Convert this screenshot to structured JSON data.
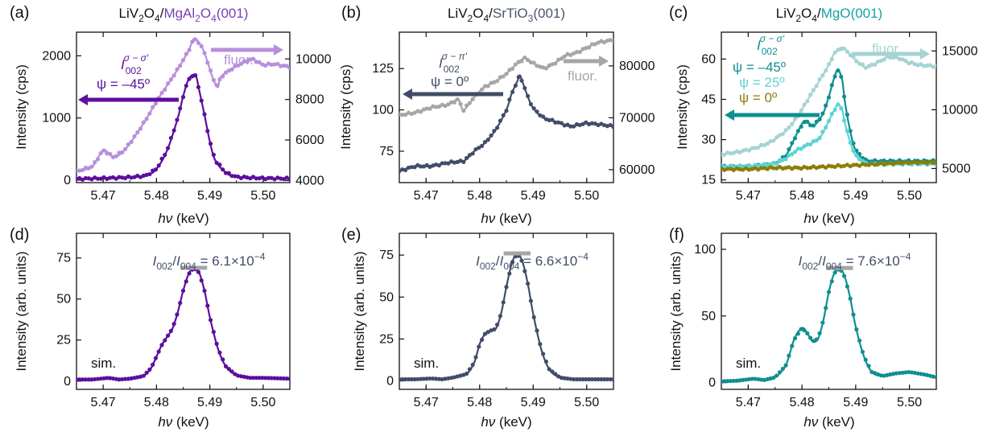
{
  "colors": {
    "purple": "#5c0f9e",
    "purple_light": "#b78fdc",
    "slate": "#414d68",
    "gray": "#a6a6a6",
    "teal_dark": "#0f8f90",
    "teal_light": "#5fd3d5",
    "olive": "#8b7d08",
    "teal_pale": "#a6d3d3",
    "bar": "#a6a6a6"
  },
  "chart_data": [
    {
      "panel": "(a)",
      "type": "line",
      "title_parts": [
        {
          "text": "LiV",
          "color": "#111111"
        },
        {
          "text": "2",
          "sub": true,
          "color": "#111111"
        },
        {
          "text": "O",
          "color": "#111111"
        },
        {
          "text": "4",
          "sub": true,
          "color": "#111111"
        },
        {
          "text": "/",
          "color": "#111111"
        },
        {
          "text": "MgAl",
          "color": "#7a3fb5"
        },
        {
          "text": "2",
          "sub": true,
          "color": "#7a3fb5"
        },
        {
          "text": "O",
          "color": "#7a3fb5"
        },
        {
          "text": "4",
          "sub": true,
          "color": "#7a3fb5"
        },
        {
          "text": "(001)",
          "color": "#7a3fb5"
        }
      ],
      "xlabel": "hν (keV)",
      "ylabel": "Intensity (cps)",
      "xlim": [
        5.465,
        5.505
      ],
      "xticks": [
        "5.47",
        "5.48",
        "5.49",
        "5.50"
      ],
      "ylim": [
        -40,
        2380
      ],
      "yticks": [
        "0",
        "1000",
        "2000"
      ],
      "y2lim": [
        3900,
        11320
      ],
      "y2ticks": [
        "4000",
        "6000",
        "8000",
        "10000"
      ],
      "annotations": [
        "I",
        "002",
        "σ − σ′",
        "ψ = –45º",
        "fluor."
      ],
      "series": [
        {
          "role": "main",
          "color": "#5c0f9e",
          "x": [
            5.465,
            5.47,
            5.475,
            5.478,
            5.48,
            5.482,
            5.484,
            5.485,
            5.486,
            5.487,
            5.4875,
            5.488,
            5.489,
            5.49,
            5.491,
            5.493,
            5.495,
            5.5,
            5.505
          ],
          "y": [
            20,
            30,
            45,
            70,
            180,
            480,
            1000,
            1350,
            1620,
            1700,
            1650,
            1450,
            1050,
            620,
            320,
            120,
            50,
            30,
            25
          ]
        },
        {
          "role": "fluor",
          "axis": "right",
          "color": "#b78fdc",
          "x": [
            5.465,
            5.468,
            5.47,
            5.472,
            5.474,
            5.476,
            5.478,
            5.48,
            5.482,
            5.484,
            5.486,
            5.487,
            5.488,
            5.489,
            5.4905,
            5.4915,
            5.492,
            5.494,
            5.496,
            5.498,
            5.5,
            5.502,
            5.505
          ],
          "y": [
            4450,
            4700,
            5500,
            5150,
            5500,
            6200,
            7000,
            7900,
            8700,
            9500,
            10400,
            11000,
            10800,
            10300,
            9100,
            8600,
            9100,
            9500,
            9800,
            10000,
            9700,
            9750,
            9600
          ]
        }
      ]
    },
    {
      "panel": "(b)",
      "type": "line",
      "title_parts": [
        {
          "text": "LiV",
          "color": "#111111"
        },
        {
          "text": "2",
          "sub": true,
          "color": "#111111"
        },
        {
          "text": "O",
          "color": "#111111"
        },
        {
          "text": "4",
          "sub": true,
          "color": "#111111"
        },
        {
          "text": "/",
          "color": "#111111"
        },
        {
          "text": "SrTiO",
          "color": "#4a5570"
        },
        {
          "text": "3",
          "sub": true,
          "color": "#4a5570"
        },
        {
          "text": "(001)",
          "color": "#4a5570"
        }
      ],
      "xlabel": "hν (keV)",
      "ylabel": "Intensity (cps)",
      "xlim": [
        5.465,
        5.505
      ],
      "xticks": [
        "5.47",
        "5.48",
        "5.49",
        "5.50"
      ],
      "ylim": [
        56,
        147
      ],
      "yticks": [
        "75",
        "100",
        "125"
      ],
      "y2lim": [
        57500,
        86500
      ],
      "y2ticks": [
        "60000",
        "70000",
        "80000"
      ],
      "annotations": [
        "I",
        "002",
        "σ − π′",
        "ψ = 0º",
        "fluor."
      ],
      "series": [
        {
          "role": "main",
          "color": "#414d68",
          "x": [
            5.465,
            5.468,
            5.471,
            5.474,
            5.477,
            5.479,
            5.481,
            5.483,
            5.485,
            5.486,
            5.487,
            5.4875,
            5.488,
            5.489,
            5.49,
            5.492,
            5.494,
            5.497,
            5.5,
            5.503,
            5.505
          ],
          "y": [
            63,
            66,
            66,
            68,
            69,
            75,
            80,
            88,
            100,
            110,
            117,
            121,
            117,
            108,
            101,
            95,
            93,
            90,
            92,
            91,
            90
          ]
        },
        {
          "role": "fluor",
          "axis": "right",
          "color": "#a6a6a6",
          "x": [
            5.465,
            5.468,
            5.471,
            5.474,
            5.476,
            5.477,
            5.479,
            5.481,
            5.483,
            5.485,
            5.487,
            5.4885,
            5.49,
            5.492,
            5.494,
            5.496,
            5.498,
            5.5,
            5.502,
            5.505
          ],
          "y": [
            70500,
            71000,
            72000,
            72500,
            73500,
            71500,
            74000,
            76000,
            77000,
            78500,
            80500,
            81500,
            80500,
            79500,
            80500,
            82000,
            82500,
            83500,
            84500,
            85000
          ]
        }
      ]
    },
    {
      "panel": "(c)",
      "type": "line",
      "title_parts": [
        {
          "text": "LiV",
          "color": "#111111"
        },
        {
          "text": "2",
          "sub": true,
          "color": "#111111"
        },
        {
          "text": "O",
          "color": "#111111"
        },
        {
          "text": "4",
          "sub": true,
          "color": "#111111"
        },
        {
          "text": "/",
          "color": "#111111"
        },
        {
          "text": "MgO(001)",
          "color": "#17a3a4"
        }
      ],
      "xlabel": "hν (keV)",
      "ylabel": "Intensity (cps)",
      "xlim": [
        5.465,
        5.505
      ],
      "xticks": [
        "5.47",
        "5.48",
        "5.49",
        "5.50"
      ],
      "ylim": [
        14,
        70
      ],
      "yticks": [
        "15",
        "30",
        "45",
        "60"
      ],
      "y2lim": [
        3800,
        16600
      ],
      "y2ticks": [
        "5000",
        "10000",
        "15000"
      ],
      "annotations": [
        "I",
        "002",
        "σ − σ′",
        "ψ = –45º",
        "ψ = 25º",
        "ψ = 0º",
        "fluor."
      ],
      "series": [
        {
          "role": "main",
          "name": "ψ = –45º",
          "color": "#0f8f90",
          "x": [
            5.465,
            5.47,
            5.475,
            5.477,
            5.479,
            5.4805,
            5.482,
            5.483,
            5.484,
            5.485,
            5.486,
            5.4867,
            5.4875,
            5.488,
            5.489,
            5.49,
            5.492,
            5.495,
            5.5,
            5.505
          ],
          "y": [
            20,
            20,
            21,
            24,
            32,
            37,
            35,
            37,
            40,
            46,
            53,
            56,
            52,
            44,
            33,
            26,
            22,
            22,
            22,
            22
          ]
        },
        {
          "role": "main",
          "name": "ψ = 25º",
          "color": "#5fd3d5",
          "x": [
            5.465,
            5.47,
            5.475,
            5.477,
            5.479,
            5.481,
            5.483,
            5.484,
            5.485,
            5.486,
            5.4867,
            5.4875,
            5.488,
            5.489,
            5.49,
            5.492,
            5.495,
            5.5,
            5.505
          ],
          "y": [
            20,
            20,
            21,
            23,
            26,
            28,
            30,
            33,
            37,
            41,
            43,
            41,
            36,
            29,
            24,
            21,
            21,
            21,
            21
          ]
        },
        {
          "role": "main",
          "name": "ψ = 0º",
          "color": "#8b7d08",
          "x": [
            5.465,
            5.47,
            5.475,
            5.48,
            5.485,
            5.49,
            5.495,
            5.5,
            5.505
          ],
          "y": [
            19,
            19,
            19.5,
            19.5,
            20,
            20.5,
            21,
            21.5,
            21.5
          ]
        },
        {
          "role": "fluor",
          "axis": "right",
          "color": "#a6d3d3",
          "x": [
            5.465,
            5.468,
            5.471,
            5.474,
            5.477,
            5.479,
            5.481,
            5.483,
            5.485,
            5.486,
            5.4875,
            5.489,
            5.4905,
            5.492,
            5.494,
            5.496,
            5.498,
            5.5,
            5.502,
            5.505
          ],
          "y": [
            6200,
            6400,
            6700,
            7200,
            8200,
            9300,
            10800,
            12300,
            13800,
            14800,
            15300,
            14700,
            14000,
            13600,
            14000,
            14500,
            14400,
            14000,
            13800,
            13700
          ]
        }
      ]
    },
    {
      "panel": "(d)",
      "type": "line",
      "xlabel": "hν (keV)",
      "ylabel": "Intensity (arb. units)",
      "xlim": [
        5.465,
        5.505
      ],
      "xticks": [
        "5.47",
        "5.48",
        "5.49",
        "5.50"
      ],
      "ylim": [
        -5,
        90
      ],
      "yticks": [
        "0",
        "25",
        "50",
        "75"
      ],
      "ratio_text": [
        "I",
        "002",
        "/",
        "I",
        "004",
        " = 6.1×10",
        "−4"
      ],
      "sim_label": "sim.",
      "bar": [
        5.4845,
        5.4895,
        69
      ],
      "series": [
        {
          "role": "main",
          "color": "#5c0f9e",
          "x": [
            5.465,
            5.468,
            5.471,
            5.473,
            5.475,
            5.4775,
            5.479,
            5.48,
            5.481,
            5.482,
            5.483,
            5.484,
            5.485,
            5.486,
            5.487,
            5.488,
            5.489,
            5.49,
            5.4915,
            5.493,
            5.495,
            5.4975,
            5.5,
            5.505
          ],
          "y": [
            1,
            1,
            2,
            1,
            1.5,
            3,
            8,
            15,
            22,
            27,
            32,
            42,
            55,
            65,
            69,
            66,
            55,
            39,
            20,
            9,
            3.5,
            2,
            2,
            1.5
          ]
        }
      ]
    },
    {
      "panel": "(e)",
      "type": "line",
      "xlabel": "hν (keV)",
      "ylabel": "Intensity (arb. units)",
      "xlim": [
        5.465,
        5.505
      ],
      "xticks": [
        "5.47",
        "5.48",
        "5.49",
        "5.50"
      ],
      "ylim": [
        -5,
        88
      ],
      "yticks": [
        "0",
        "25",
        "50",
        "75"
      ],
      "ratio_text": [
        "I",
        "002",
        "/",
        "I",
        "004",
        " = 6.6×10",
        "−4"
      ],
      "sim_label": "sim.",
      "bar": [
        5.4845,
        5.4895,
        76
      ],
      "series": [
        {
          "role": "main",
          "color": "#414d68",
          "x": [
            5.465,
            5.468,
            5.471,
            5.473,
            5.475,
            5.4775,
            5.479,
            5.48,
            5.481,
            5.482,
            5.483,
            5.484,
            5.485,
            5.486,
            5.487,
            5.488,
            5.489,
            5.49,
            5.4915,
            5.493,
            5.495,
            5.4975,
            5.5,
            5.505
          ],
          "y": [
            1,
            1,
            1.5,
            1,
            2,
            4,
            11,
            22,
            28,
            30,
            31,
            40,
            56,
            70,
            76,
            71,
            58,
            40,
            19,
            7,
            2,
            1,
            1,
            1
          ]
        }
      ]
    },
    {
      "panel": "(f)",
      "type": "line",
      "xlabel": "hν (keV)",
      "ylabel": "Intensity (arb. units)",
      "xlim": [
        5.465,
        5.505
      ],
      "xticks": [
        "5.47",
        "5.48",
        "5.49",
        "5.50"
      ],
      "ylim": [
        -5,
        112
      ],
      "yticks": [
        "0",
        "50",
        "100"
      ],
      "ratio_text": [
        "I",
        "002",
        "/",
        "I",
        "004",
        " = 7.6×10",
        "−4"
      ],
      "sim_label": "sim.",
      "bar": [
        5.4845,
        5.4895,
        86
      ],
      "series": [
        {
          "role": "main",
          "color": "#0f8f90",
          "x": [
            5.465,
            5.468,
            5.471,
            5.473,
            5.475,
            5.477,
            5.4785,
            5.48,
            5.481,
            5.482,
            5.483,
            5.484,
            5.485,
            5.486,
            5.487,
            5.488,
            5.489,
            5.49,
            5.4915,
            5.493,
            5.495,
            5.4975,
            5.5,
            5.503,
            5.505
          ],
          "y": [
            1,
            1.5,
            3,
            2,
            4,
            13,
            32,
            41,
            37,
            31,
            33,
            47,
            68,
            82,
            86,
            79,
            63,
            42,
            20,
            8,
            5,
            7,
            8,
            6,
            4
          ]
        }
      ]
    }
  ]
}
